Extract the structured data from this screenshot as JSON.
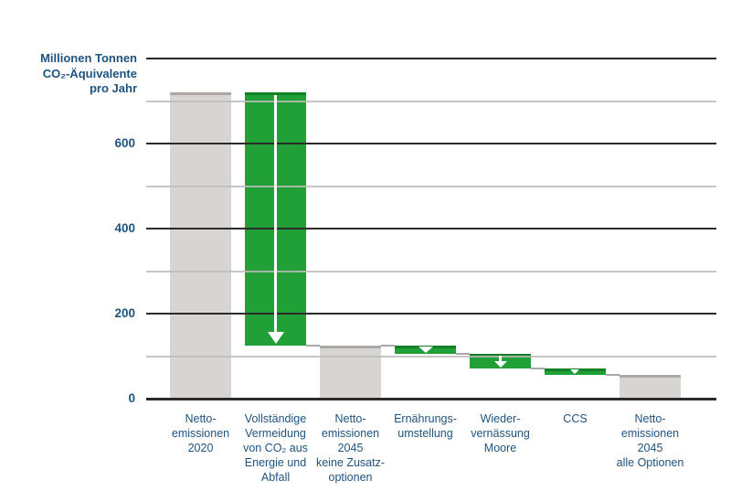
{
  "chart_data": {
    "type": "bar",
    "subtype": "waterfall",
    "title": "",
    "ylabel_lines": [
      "Millionen Tonnen",
      "CO₂-Äquivalente",
      "pro Jahr"
    ],
    "ylabel": "Millionen Tonnen CO₂-Äquivalente pro Jahr",
    "xlabel": "",
    "ylim": [
      0,
      800
    ],
    "y_axis": {
      "min": 0,
      "max": 800,
      "minor_step": 100,
      "major_step": 200,
      "labeled_ticks": [
        0,
        200,
        400,
        600
      ],
      "grid": "on",
      "legend": "none"
    },
    "categories": [
      "Netto-emissionen 2020",
      "Vollständige Vermeidung von CO₂ aus Energie und Abfall",
      "Netto-emissionen 2045 keine Zusatz-optionen",
      "Ernährungs-umstellung",
      "Wieder-vernässung Moore",
      "CCS",
      "Netto-emissionen 2045 alle Optionen"
    ],
    "values": [
      720,
      -595,
      125,
      -20,
      -33,
      -17,
      55
    ],
    "bars": [
      {
        "label_lines": [
          "Netto-",
          "emissionen",
          "2020"
        ],
        "role": "total",
        "from": 0,
        "to": 720,
        "color": "gray",
        "arrow": false
      },
      {
        "label_lines": [
          "Vollständige",
          "Vermeidung",
          "von CO₂ aus",
          "Energie und",
          "Abfall"
        ],
        "role": "decrease",
        "from": 720,
        "to": 125,
        "color": "green",
        "arrow": true
      },
      {
        "label_lines": [
          "Netto-",
          "emissionen",
          "2045",
          "keine Zusatz-",
          "optionen"
        ],
        "role": "total",
        "from": 0,
        "to": 125,
        "color": "gray",
        "arrow": false
      },
      {
        "label_lines": [
          "Ernährungs-",
          "umstellung"
        ],
        "role": "decrease",
        "from": 125,
        "to": 105,
        "color": "green",
        "arrow": true
      },
      {
        "label_lines": [
          "Wieder-",
          "vernässung",
          "Moore"
        ],
        "role": "decrease",
        "from": 105,
        "to": 72,
        "color": "green",
        "arrow": true
      },
      {
        "label_lines": [
          "CCS"
        ],
        "role": "decrease",
        "from": 72,
        "to": 55,
        "color": "green",
        "arrow": true
      },
      {
        "label_lines": [
          "Netto-",
          "emissionen",
          "2045",
          "alle Optionen"
        ],
        "role": "total",
        "from": 0,
        "to": 55,
        "color": "gray",
        "arrow": false
      }
    ],
    "connectors": [
      {
        "after_bar": 1,
        "value": 125
      },
      {
        "after_bar": 2,
        "value": 125
      },
      {
        "after_bar": 3,
        "value": 105
      },
      {
        "after_bar": 4,
        "value": 72
      },
      {
        "after_bar": 5,
        "value": 55
      }
    ],
    "colors": {
      "green": "#21a038",
      "green_border": "#128027",
      "gray": "#d8d4d2",
      "gray_border": "#aba7a4",
      "text_blue": "#1d5381",
      "grid_dark": "#2b2b2b",
      "grid_light": "#bcbcbc",
      "connector": "#a9a9a9",
      "arrow": "#ffffff",
      "background": "#ffffff"
    }
  }
}
